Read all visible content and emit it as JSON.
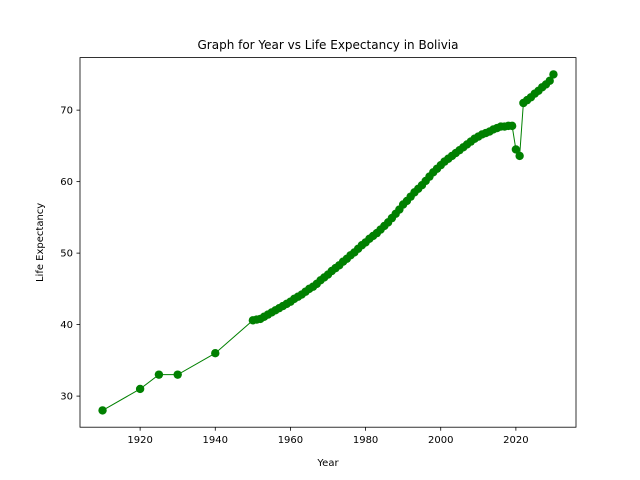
{
  "chart_data": {
    "type": "line",
    "title": "Graph for Year vs Life Expectancy in Bolivia",
    "x_label": "Year",
    "y_label": "Life Expectancy",
    "x": [
      1910,
      1920,
      1925,
      1930,
      1940,
      1950,
      1951,
      1952,
      1953,
      1954,
      1955,
      1956,
      1957,
      1958,
      1959,
      1960,
      1961,
      1962,
      1963,
      1964,
      1965,
      1966,
      1967,
      1968,
      1969,
      1970,
      1971,
      1972,
      1973,
      1974,
      1975,
      1976,
      1977,
      1978,
      1979,
      1980,
      1981,
      1982,
      1983,
      1984,
      1985,
      1986,
      1987,
      1988,
      1989,
      1990,
      1991,
      1992,
      1993,
      1994,
      1995,
      1996,
      1997,
      1998,
      1999,
      2000,
      2001,
      2002,
      2003,
      2004,
      2005,
      2006,
      2007,
      2008,
      2009,
      2010,
      2011,
      2012,
      2013,
      2014,
      2015,
      2016,
      2017,
      2018,
      2019,
      2020,
      2021,
      2022,
      2023,
      2024,
      2025,
      2026,
      2027,
      2028,
      2029,
      2030
    ],
    "series": [
      {
        "name": "Life Expectancy",
        "color": "#008000",
        "values": [
          28,
          31,
          33,
          33,
          36,
          40.6,
          40.7,
          40.8,
          41.1,
          41.4,
          41.7,
          42.0,
          42.3,
          42.6,
          42.9,
          43.2,
          43.6,
          43.9,
          44.2,
          44.6,
          45.0,
          45.3,
          45.7,
          46.2,
          46.6,
          47.0,
          47.5,
          47.9,
          48.3,
          48.8,
          49.2,
          49.7,
          50.1,
          50.6,
          51.1,
          51.5,
          52.0,
          52.4,
          52.8,
          53.3,
          53.8,
          54.3,
          54.9,
          55.5,
          56.1,
          56.8,
          57.3,
          57.9,
          58.5,
          59.0,
          59.5,
          60.1,
          60.7,
          61.3,
          61.8,
          62.3,
          62.8,
          63.2,
          63.6,
          64.0,
          64.4,
          64.8,
          65.2,
          65.6,
          66.0,
          66.3,
          66.6,
          66.8,
          67.0,
          67.3,
          67.5,
          67.7,
          67.7,
          67.8,
          67.8,
          64.5,
          63.6,
          71.0,
          71.4,
          71.8,
          72.3,
          72.7,
          73.2,
          73.6,
          74.1,
          75.0
        ]
      }
    ],
    "xlim": [
      1904,
      2036
    ],
    "ylim": [
      25.65,
      77.35
    ],
    "xticks": [
      1920,
      1940,
      1960,
      1980,
      2000,
      2020
    ],
    "yticks": [
      30,
      40,
      50,
      60,
      70
    ],
    "grid": false
  }
}
